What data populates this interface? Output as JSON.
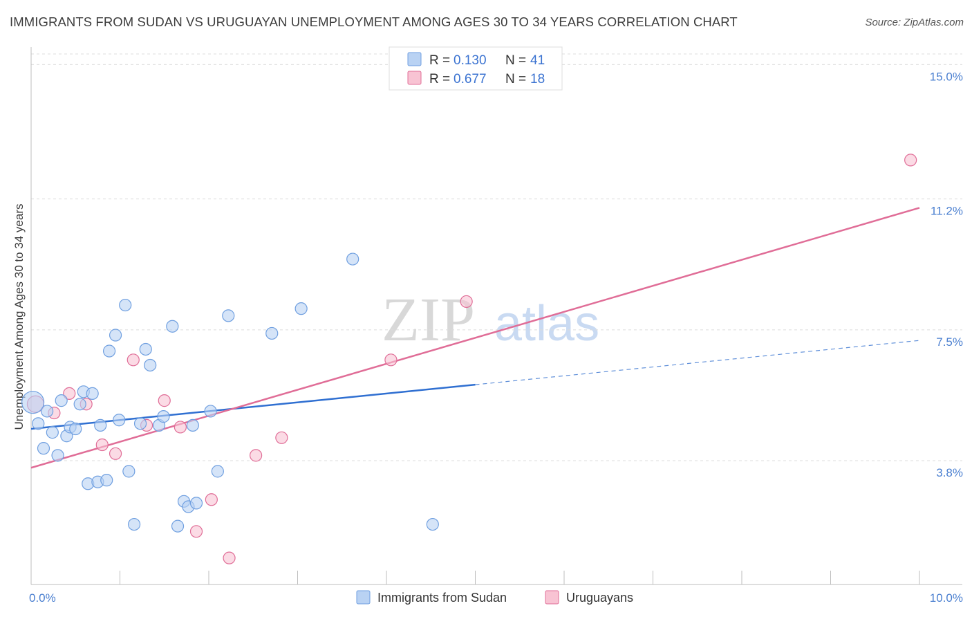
{
  "chart_data": {
    "type": "scatter",
    "title": "IMMIGRANTS FROM SUDAN VS URUGUAYAN UNEMPLOYMENT AMONG AGES 30 TO 34 YEARS CORRELATION CHART",
    "source": "Source: ZipAtlas.com",
    "xlabel": "",
    "ylabel": "Unemployment Among Ages 30 to 34 years",
    "xlim": [
      0,
      10
    ],
    "ylim": [
      0.3,
      15.3
    ],
    "x_tick_labels": [
      "0.0%",
      "10.0%"
    ],
    "y_ticks": [
      {
        "value": 3.8,
        "label": "3.8%"
      },
      {
        "value": 7.5,
        "label": "7.5%"
      },
      {
        "value": 11.2,
        "label": "11.2%"
      },
      {
        "value": 15.0,
        "label": "15.0%"
      }
    ],
    "grid": true,
    "legend_position": "top-center",
    "watermark": {
      "zip": "ZIP",
      "atlas": "atlas"
    },
    "series": [
      {
        "name": "Immigrants from Sudan",
        "color": "#6f9fe0",
        "fill": "#b9d2f3",
        "R": "0.130",
        "N": "41",
        "trend": {
          "x0": 0.0,
          "y0": 4.7,
          "x1": 5.0,
          "y1": 5.95,
          "dash_x1": 10.0,
          "dash_y1": 7.2
        },
        "points": [
          {
            "x": 0.02,
            "y": 5.45,
            "size": 16
          },
          {
            "x": 0.08,
            "y": 4.85
          },
          {
            "x": 0.18,
            "y": 5.2
          },
          {
            "x": 0.14,
            "y": 4.15
          },
          {
            "x": 0.24,
            "y": 4.6
          },
          {
            "x": 0.3,
            "y": 3.95
          },
          {
            "x": 0.34,
            "y": 5.5
          },
          {
            "x": 0.4,
            "y": 4.5
          },
          {
            "x": 0.44,
            "y": 4.75
          },
          {
            "x": 0.5,
            "y": 4.7
          },
          {
            "x": 0.55,
            "y": 5.4
          },
          {
            "x": 0.59,
            "y": 5.75
          },
          {
            "x": 0.69,
            "y": 5.7
          },
          {
            "x": 0.64,
            "y": 3.15
          },
          {
            "x": 0.75,
            "y": 3.2
          },
          {
            "x": 0.78,
            "y": 4.8
          },
          {
            "x": 0.85,
            "y": 3.25
          },
          {
            "x": 0.88,
            "y": 6.9
          },
          {
            "x": 0.95,
            "y": 7.35
          },
          {
            "x": 0.99,
            "y": 4.95
          },
          {
            "x": 1.06,
            "y": 8.2
          },
          {
            "x": 1.1,
            "y": 3.5
          },
          {
            "x": 1.16,
            "y": 2.0
          },
          {
            "x": 1.23,
            "y": 4.85
          },
          {
            "x": 1.29,
            "y": 6.95
          },
          {
            "x": 1.34,
            "y": 6.5
          },
          {
            "x": 1.44,
            "y": 4.8
          },
          {
            "x": 1.49,
            "y": 5.05
          },
          {
            "x": 1.59,
            "y": 7.6
          },
          {
            "x": 1.65,
            "y": 1.95
          },
          {
            "x": 1.72,
            "y": 2.65
          },
          {
            "x": 1.77,
            "y": 2.5
          },
          {
            "x": 1.86,
            "y": 2.6
          },
          {
            "x": 1.82,
            "y": 4.8
          },
          {
            "x": 2.02,
            "y": 5.2
          },
          {
            "x": 2.1,
            "y": 3.5
          },
          {
            "x": 2.22,
            "y": 7.9
          },
          {
            "x": 2.71,
            "y": 7.4
          },
          {
            "x": 3.04,
            "y": 8.1
          },
          {
            "x": 3.62,
            "y": 9.5
          },
          {
            "x": 4.52,
            "y": 2.0
          }
        ]
      },
      {
        "name": "Uruguayans",
        "color": "#e06d97",
        "fill": "#f8c3d3",
        "R": "0.677",
        "N": "18",
        "trend": {
          "x0": 0.0,
          "y0": 3.6,
          "x1": 10.0,
          "y1": 10.95
        },
        "points": [
          {
            "x": 0.05,
            "y": 5.4,
            "size": 12
          },
          {
            "x": 0.26,
            "y": 5.15
          },
          {
            "x": 0.43,
            "y": 5.7
          },
          {
            "x": 0.62,
            "y": 5.4
          },
          {
            "x": 0.8,
            "y": 4.25
          },
          {
            "x": 0.95,
            "y": 4.0
          },
          {
            "x": 1.15,
            "y": 6.65
          },
          {
            "x": 1.3,
            "y": 4.8
          },
          {
            "x": 1.5,
            "y": 5.5
          },
          {
            "x": 1.68,
            "y": 4.75
          },
          {
            "x": 1.86,
            "y": 1.8
          },
          {
            "x": 2.03,
            "y": 2.7
          },
          {
            "x": 2.23,
            "y": 1.05
          },
          {
            "x": 2.53,
            "y": 3.95
          },
          {
            "x": 2.82,
            "y": 4.45
          },
          {
            "x": 4.05,
            "y": 6.65
          },
          {
            "x": 4.9,
            "y": 8.3
          },
          {
            "x": 9.9,
            "y": 12.3
          }
        ]
      }
    ]
  },
  "legend": {
    "r_label": "R =",
    "n_label": "N ="
  }
}
